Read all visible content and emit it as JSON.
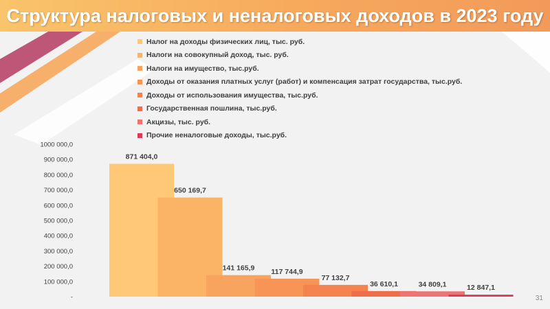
{
  "slide": {
    "title": "Структура налоговых и неналоговых доходов в 2023 году",
    "page_number": "31"
  },
  "colors": {
    "title_bar": "#f7a95c",
    "deco_magenta": "#b8456a",
    "deco_orange": "#f7a95c"
  },
  "chart_data": {
    "type": "bar",
    "title": "",
    "xlabel": "",
    "ylabel": "",
    "ylim": [
      0,
      1000000
    ],
    "yticks": [
      0,
      100000,
      200000,
      300000,
      400000,
      500000,
      600000,
      700000,
      800000,
      900000,
      1000000
    ],
    "ytick_labels": [
      "-",
      "100 000,0",
      "200 000,0",
      "300 000,0",
      "400 000,0",
      "500 000,0",
      "600 000,0",
      "700 000,0",
      "800 000,0",
      "900 000,0",
      "1000 000,0"
    ],
    "grid": false,
    "legend_position": "top",
    "series": [
      {
        "name": "Налог на доходы физических лиц, тыс. руб.",
        "values": [
          871404.0
        ],
        "label": "871 404,0",
        "color": "#ffc876"
      },
      {
        "name": "Налоги на совокупный доход, тыс. руб.",
        "values": [
          650169.7
        ],
        "label": "650 169,7",
        "color": "#fbb466"
      },
      {
        "name": "Налоги на имущество, тыс.руб.",
        "values": [
          141165.9
        ],
        "label": "141 165,9",
        "color": "#f9a45e"
      },
      {
        "name": "Доходы от оказания платных услуг (работ) и компенсация затрат государства, тыс.руб.",
        "values": [
          117744.9
        ],
        "label": "117 744,9",
        "color": "#f79456"
      },
      {
        "name": "Доходы от использования имущества, тыс.руб.",
        "values": [
          77132.7
        ],
        "label": "77 132,7",
        "color": "#f4834f"
      },
      {
        "name": "Государственная пошлина, тыс.руб.",
        "values": [
          36610.1
        ],
        "label": "36 610,1",
        "color": "#ef6e49"
      },
      {
        "name": "Акцизы, тыс. руб.",
        "values": [
          34809.1
        ],
        "label": "34 809,1",
        "color": "#ee7373"
      },
      {
        "name": "Прочие неналоговые доходы, тыс.руб.",
        "values": [
          12847.1
        ],
        "label": "12 847,1",
        "color": "#d83a57"
      }
    ]
  }
}
